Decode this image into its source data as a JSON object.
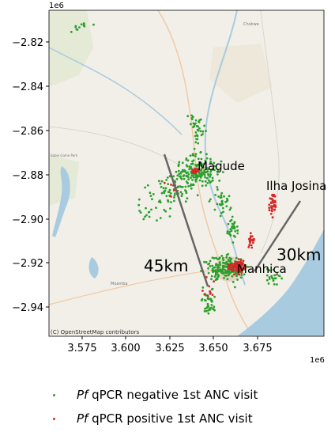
{
  "map": {
    "x_exponent": "1e6",
    "y_exponent": "1e6",
    "x_ticks": [
      "3.575",
      "3.600",
      "3.625",
      "3.650",
      "3.675"
    ],
    "y_ticks": [
      "−2.82",
      "−2.84",
      "−2.86",
      "−2.88",
      "−2.90",
      "−2.92",
      "−2.94"
    ],
    "places": [
      "Magude",
      "Ilha Josina",
      "Manhiça"
    ],
    "distances": [
      "45km",
      "30km"
    ],
    "attribution": "(C) OpenStreetMap contributors",
    "basemap_labels": [
      "Chokwe",
      "Moamba",
      "Sabie Game Park"
    ],
    "colors": {
      "negative": "#2ca02c",
      "positive": "#d62728",
      "water": "#a9cbe0",
      "land": "#f1efe8",
      "line": "#666666"
    }
  },
  "legend": {
    "items": [
      {
        "italic": "Pf",
        "text": " qPCR negative 1st ANC visit",
        "color": "#2ca02c"
      },
      {
        "italic": "Pf",
        "text": " qPCR positive 1st ANC visit",
        "color": "#d62728"
      }
    ]
  }
}
